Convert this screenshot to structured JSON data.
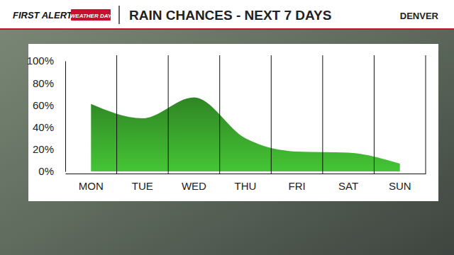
{
  "chart_data": {
    "type": "area",
    "title": "RAIN CHANCES - NEXT 7 DAYS",
    "subtitle": "DENVER",
    "annotations": [
      "FIRST ALERT",
      "WEATHER DAY"
    ],
    "categories": [
      "MON",
      "TUE",
      "WED",
      "THU",
      "FRI",
      "SAT",
      "SUN"
    ],
    "values": [
      61,
      48,
      67,
      30,
      18,
      17,
      7
    ],
    "color": "#3aa52c",
    "ylim": [
      0,
      100
    ],
    "yticks": [
      {
        "value": 0,
        "label": "0%"
      },
      {
        "value": 20,
        "label": "20%"
      },
      {
        "value": 40,
        "label": "40%"
      },
      {
        "value": 60,
        "label": "60%"
      },
      {
        "value": 80,
        "label": "80%"
      },
      {
        "value": 100,
        "label": "100%"
      }
    ],
    "grid": false
  }
}
